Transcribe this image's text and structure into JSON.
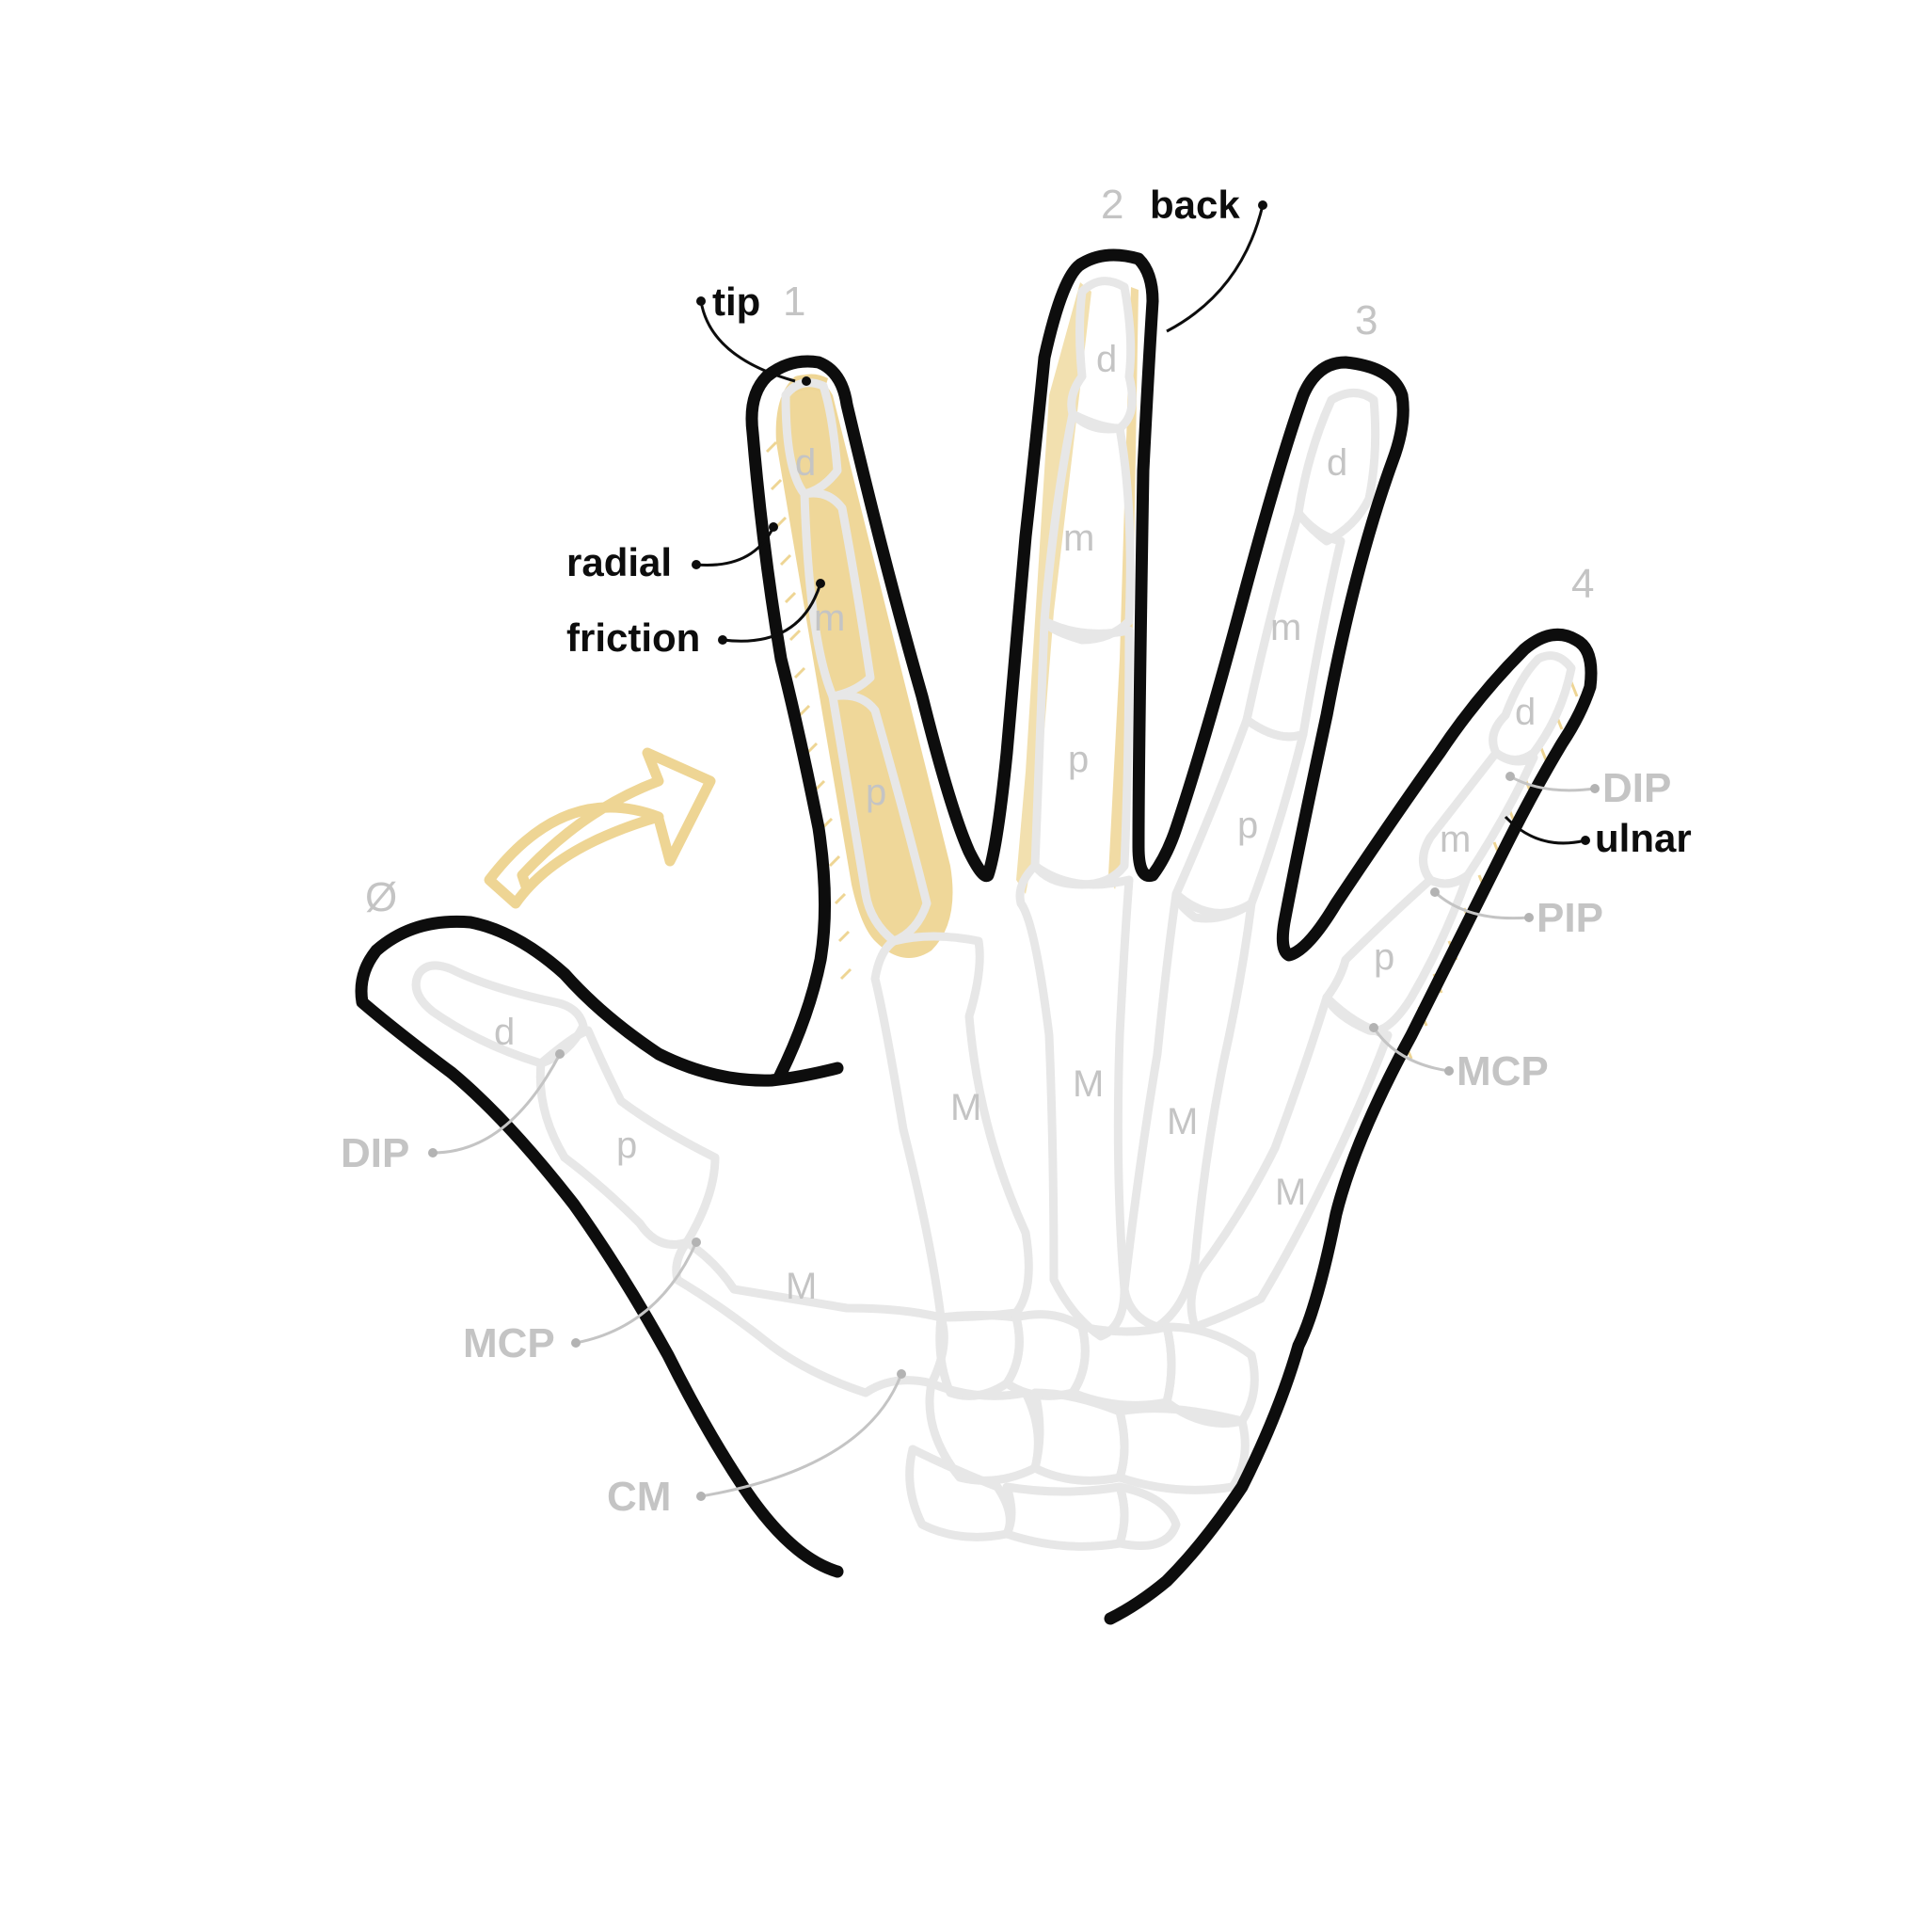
{
  "colors": {
    "outline": "#0d0d0d",
    "bone": "#e7e7e7",
    "highlight": "#eed594",
    "gray_label": "#c4c4c4",
    "black_label": "#0d0d0d"
  },
  "finger_numbers": {
    "thumb": "Ø",
    "f1": "1",
    "f2": "2",
    "f3": "3",
    "f4": "4"
  },
  "segments": {
    "d": "d",
    "m": "m",
    "p": "p",
    "M": "M"
  },
  "joints": {
    "thumb_dip": "DIP",
    "thumb_mcp": "MCP",
    "thumb_cm": "CM",
    "f4_dip": "DIP",
    "f4_pip": "PIP",
    "f4_mcp": "MCP"
  },
  "zones": {
    "tip": "tip",
    "back": "back",
    "radial": "radial",
    "friction": "friction",
    "ulnar": "ulnar"
  },
  "icons": {
    "arrow": "curved-arrow-icon"
  }
}
